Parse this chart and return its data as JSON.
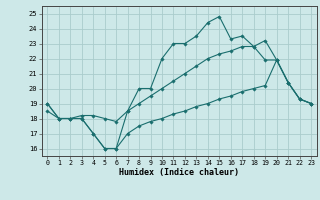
{
  "xlabel": "Humidex (Indice chaleur)",
  "bg_color": "#cde8e8",
  "grid_color": "#aacccc",
  "line_color": "#1a6e6e",
  "xlim": [
    -0.5,
    23.5
  ],
  "ylim": [
    15.5,
    25.5
  ],
  "xticks": [
    0,
    1,
    2,
    3,
    4,
    5,
    6,
    7,
    8,
    9,
    10,
    11,
    12,
    13,
    14,
    15,
    16,
    17,
    18,
    19,
    20,
    21,
    22,
    23
  ],
  "yticks": [
    16,
    17,
    18,
    19,
    20,
    21,
    22,
    23,
    24,
    25
  ],
  "line1_y": [
    19.0,
    18.0,
    18.0,
    18.0,
    17.0,
    16.0,
    16.0,
    18.5,
    20.0,
    20.0,
    22.0,
    23.0,
    23.0,
    23.5,
    24.4,
    24.8,
    23.3,
    23.5,
    22.8,
    23.2,
    21.9,
    20.4,
    19.3,
    19.0
  ],
  "line2_y": [
    18.5,
    18.0,
    18.0,
    18.2,
    18.2,
    18.0,
    17.8,
    18.5,
    19.0,
    19.5,
    20.0,
    20.5,
    21.0,
    21.5,
    22.0,
    22.3,
    22.5,
    22.8,
    22.8,
    21.9,
    21.9,
    20.4,
    19.3,
    19.0
  ],
  "line3_y": [
    19.0,
    18.0,
    18.0,
    18.0,
    17.0,
    16.0,
    16.0,
    17.0,
    17.5,
    17.8,
    18.0,
    18.3,
    18.5,
    18.8,
    19.0,
    19.3,
    19.5,
    19.8,
    20.0,
    20.2,
    21.9,
    20.4,
    19.3,
    19.0
  ]
}
